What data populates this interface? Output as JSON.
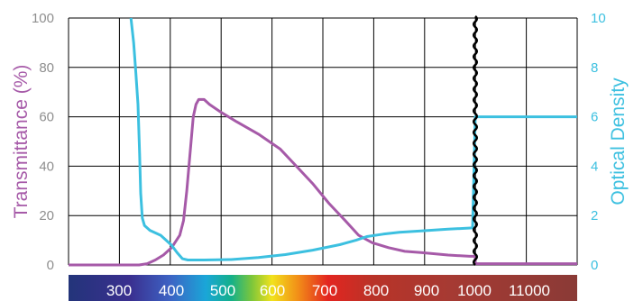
{
  "chart_data": {
    "type": "line",
    "x_unit_note": "",
    "left_axis": {
      "label": "Transmittance (%)",
      "ticks": [
        "0",
        "20",
        "40",
        "60",
        "80",
        "100"
      ],
      "range": [
        0,
        100
      ],
      "color": "#a65aa8"
    },
    "right_axis": {
      "label": "Optical Density",
      "ticks": [
        "0",
        "2",
        "4",
        "6",
        "8",
        "10"
      ],
      "range": [
        0,
        10
      ],
      "color": "#3cc0e0"
    },
    "x_axis": {
      "tick_labels": [
        "300",
        "400",
        "500",
        "600",
        "700",
        "800",
        "900",
        "1000",
        "11000"
      ],
      "range": [
        250,
        1000
      ],
      "axis_break_at": 1000,
      "spectrum_bar": true
    },
    "grid": true,
    "series": [
      {
        "name": "",
        "axis": "left",
        "color": "#a65aa8",
        "points": [
          [
            250,
            0
          ],
          [
            380,
            0
          ],
          [
            395,
            0.5
          ],
          [
            410,
            2
          ],
          [
            425,
            4
          ],
          [
            440,
            7
          ],
          [
            455,
            12
          ],
          [
            462,
            18
          ],
          [
            468,
            30
          ],
          [
            472,
            40
          ],
          [
            476,
            50
          ],
          [
            480,
            60
          ],
          [
            485,
            65
          ],
          [
            490,
            67
          ],
          [
            500,
            67
          ],
          [
            510,
            65
          ],
          [
            530,
            62
          ],
          [
            560,
            58
          ],
          [
            600,
            53
          ],
          [
            640,
            47
          ],
          [
            670,
            40
          ],
          [
            700,
            33
          ],
          [
            730,
            25
          ],
          [
            760,
            18
          ],
          [
            785,
            12
          ],
          [
            810,
            9
          ],
          [
            840,
            7
          ],
          [
            870,
            5.5
          ],
          [
            900,
            5
          ],
          [
            950,
            4
          ],
          [
            990,
            3.5
          ],
          [
            1000,
            3.5
          ],
          [
            1000,
            0.5
          ],
          [
            1050,
            0.5
          ]
        ]
      },
      {
        "name": "",
        "axis": "right",
        "color": "#3cc0e0",
        "points": [
          [
            365,
            10
          ],
          [
            370,
            9
          ],
          [
            374,
            7.8
          ],
          [
            378,
            6.5
          ],
          [
            381,
            4.5
          ],
          [
            383,
            2.9
          ],
          [
            386,
            1.9
          ],
          [
            390,
            1.6
          ],
          [
            400,
            1.4
          ],
          [
            420,
            1.2
          ],
          [
            440,
            0.8
          ],
          [
            450,
            0.5
          ],
          [
            460,
            0.25
          ],
          [
            470,
            0.2
          ],
          [
            500,
            0.2
          ],
          [
            550,
            0.22
          ],
          [
            600,
            0.3
          ],
          [
            650,
            0.42
          ],
          [
            700,
            0.6
          ],
          [
            750,
            0.82
          ],
          [
            780,
            1.0
          ],
          [
            800,
            1.15
          ],
          [
            830,
            1.25
          ],
          [
            860,
            1.32
          ],
          [
            900,
            1.38
          ],
          [
            950,
            1.45
          ],
          [
            995,
            1.5
          ],
          [
            1000,
            6
          ],
          [
            1050,
            6
          ]
        ]
      }
    ]
  }
}
